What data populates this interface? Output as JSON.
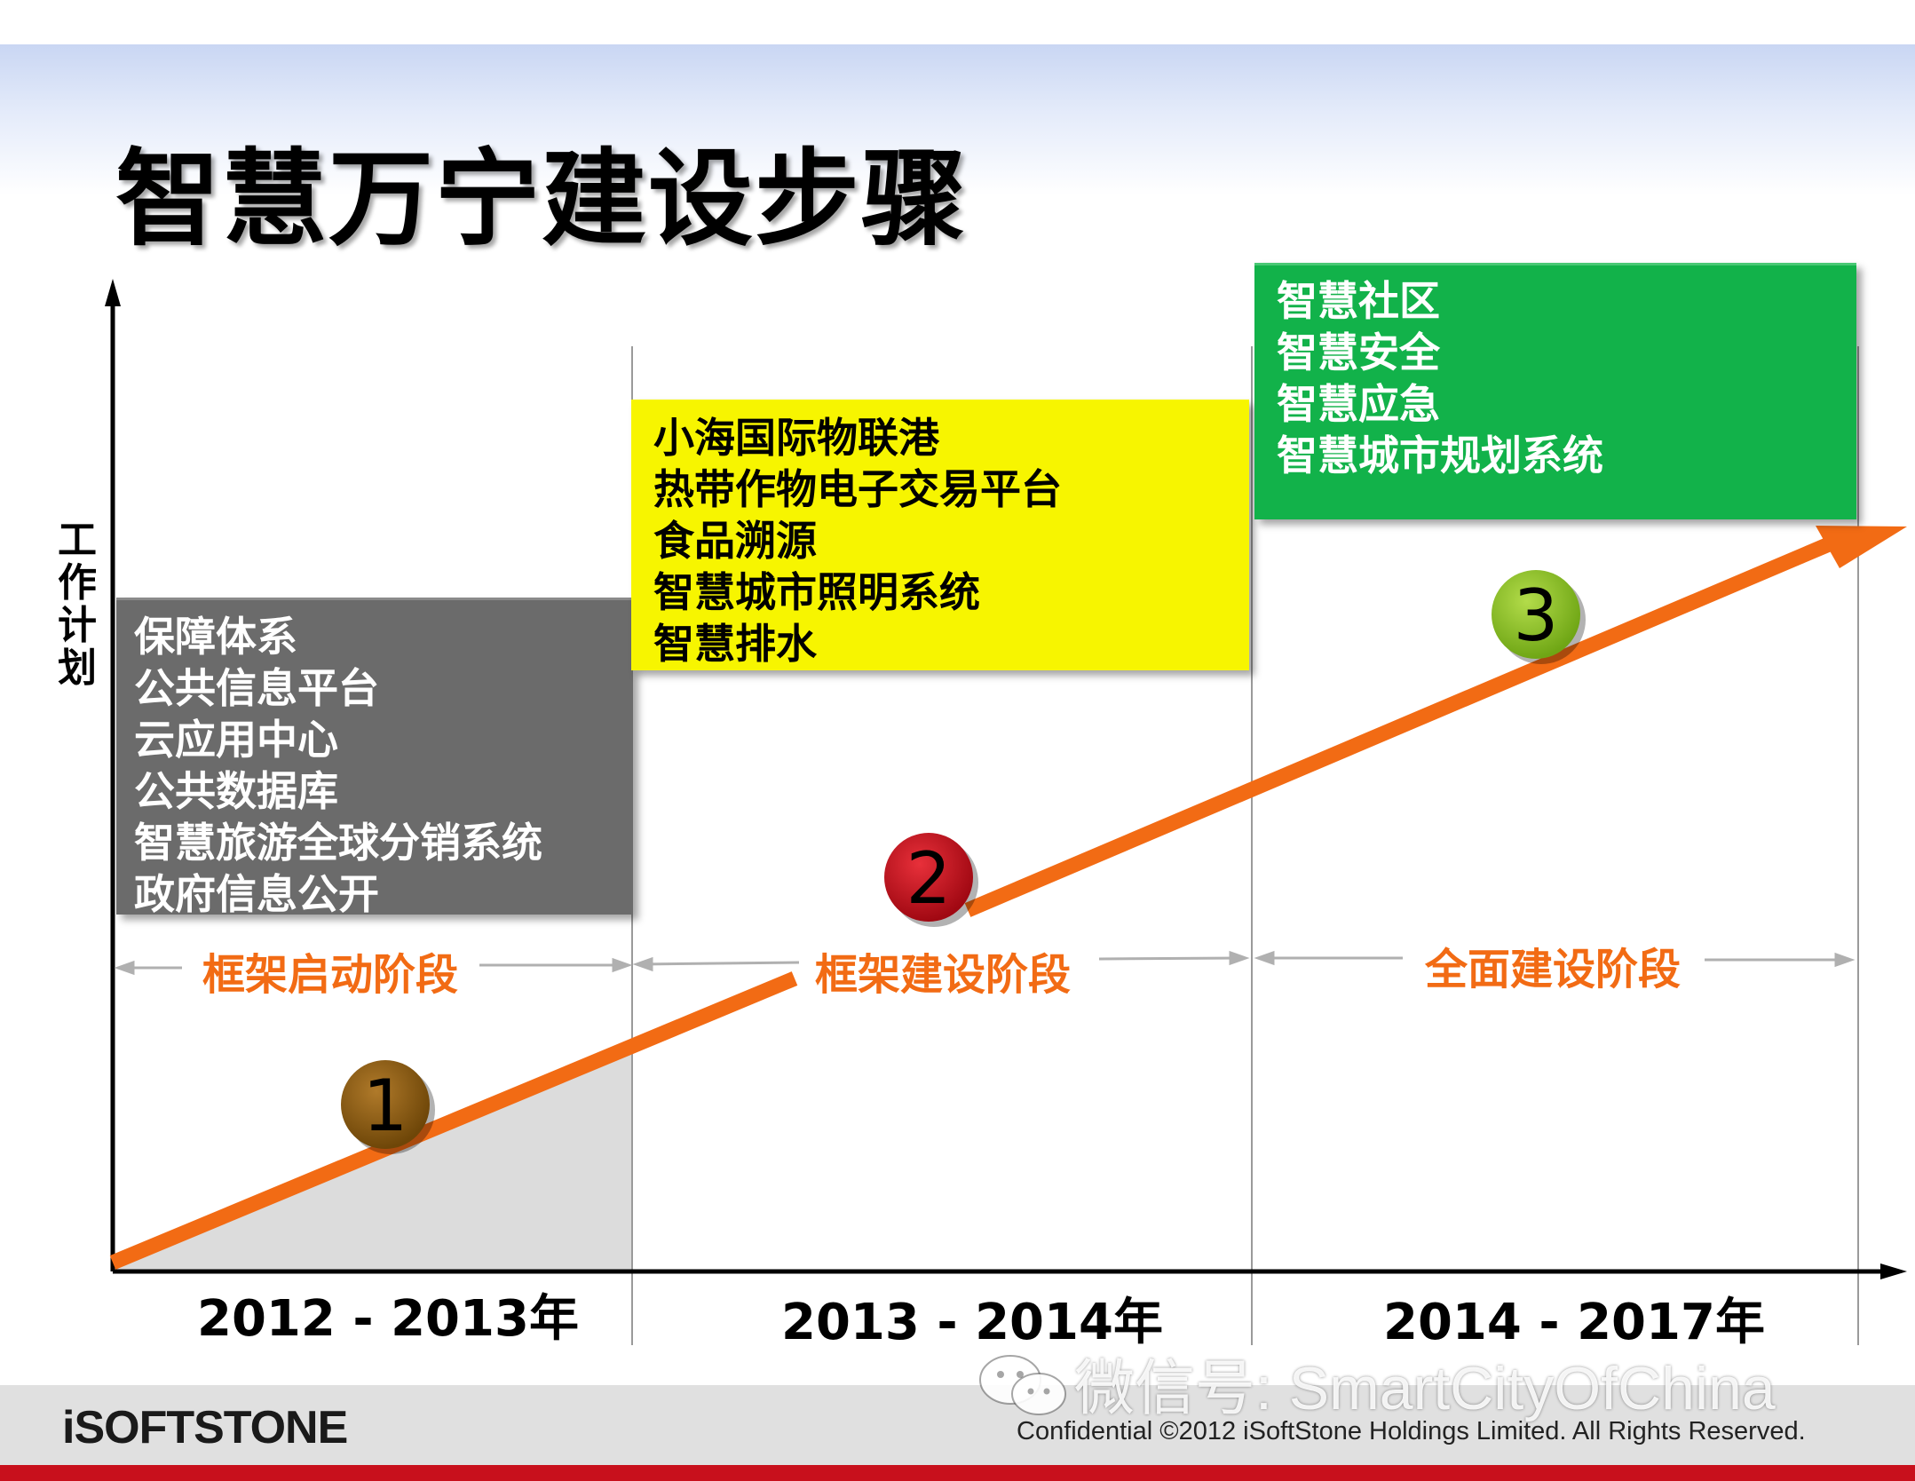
{
  "title": "智慧万宁建设步骤",
  "y_axis_label": "工作计划",
  "stage1": {
    "items": [
      "保障体系",
      "公共信息平台",
      "云应用中心",
      "公共数据库",
      "智慧旅游全球分销系统",
      "政府信息公开"
    ],
    "stage_label": "框架启动阶段",
    "year_label": "2012 - 2013年",
    "badge": "1"
  },
  "stage2": {
    "items": [
      "小海国际物联港",
      "热带作物电子交易平台",
      "食品溯源",
      "智慧城市照明系统",
      "智慧排水"
    ],
    "stage_label": "框架建设阶段",
    "year_label": "2013 - 2014年",
    "badge": "2"
  },
  "stage3": {
    "items": [
      "智慧社区",
      "智慧安全",
      "智慧应急",
      "智慧城市规划系统"
    ],
    "stage_label": "全面建设阶段",
    "year_label": "2014 - 2017年",
    "badge": "3"
  },
  "footer": {
    "logo": "iSOFTSTONE",
    "confidential": "Confidential ©2012 iSoftStone Holdings Limited. All Rights Reserved.",
    "watermark": "微信号: SmartCityOfChina"
  },
  "colors": {
    "arrow": "#f26b14",
    "stage1_box": "#6b6b6b",
    "stage2_box": "#f7f500",
    "stage3_box": "#12b24a",
    "badge1": "#8a5a0b",
    "badge2": "#c8101c",
    "badge3": "#8dc21f",
    "stage_label": "#f26b14"
  }
}
